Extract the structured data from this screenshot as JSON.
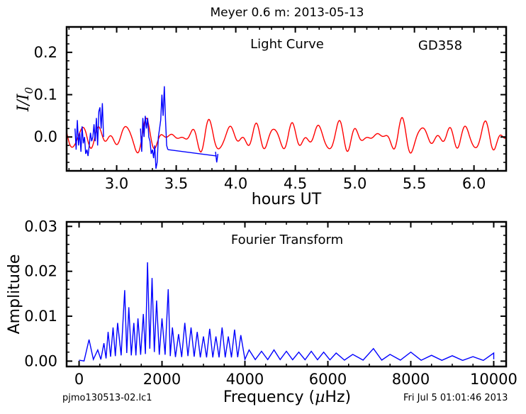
{
  "figure_title": "Meyer 0.6 m:  2013-05-13",
  "footer": {
    "left": "pjmo130513-02.lc1",
    "right": "Fri Jul  5 01:01:46 2013"
  },
  "colors": {
    "data": "#0000ff",
    "model": "#ff0000",
    "ft": "#0000ff",
    "axes": "#000000"
  },
  "chart_data": [
    {
      "type": "line",
      "name": "light-curve",
      "annotations": [
        "Light Curve",
        "GD358"
      ],
      "xlabel": "hours UT",
      "ylabel": "I/I0",
      "xlim": [
        2.58,
        6.27
      ],
      "ylim": [
        -0.08,
        0.26
      ],
      "xticks": [
        "3.0",
        "3.5",
        "4.0",
        "4.5",
        "5.0",
        "5.5",
        "6.0"
      ],
      "yticks": [
        "0.0",
        "0.1",
        "0.2"
      ],
      "series": [
        {
          "role": "observed data",
          "color": "#0000ff",
          "segments": [
            {
              "x": [
                2.65,
                2.66,
                2.67,
                2.68,
                2.69,
                2.7,
                2.71,
                2.72,
                2.73,
                2.74,
                2.75,
                2.76,
                2.77,
                2.78,
                2.79,
                2.8,
                2.81,
                2.82,
                2.83,
                2.84,
                2.85,
                2.86,
                2.87,
                2.88,
                2.89
              ],
              "y": [
                0.02,
                -0.03,
                0.04,
                -0.02,
                0.01,
                -0.035,
                0.025,
                -0.015,
                0.0,
                -0.04,
                -0.03,
                -0.045,
                -0.02,
                0.01,
                -0.01,
                0.0,
                0.03,
                -0.01,
                0.045,
                -0.02,
                0.06,
                0.07,
                0.02,
                0.08,
                0.0
              ]
            },
            {
              "x": [
                3.2,
                3.21,
                3.22,
                3.23,
                3.24,
                3.25,
                3.26,
                3.27,
                3.28,
                3.29,
                3.3,
                3.31,
                3.32,
                3.33,
                3.34,
                3.35,
                3.36,
                3.37,
                3.38,
                3.39,
                3.4,
                3.41,
                3.42,
                3.43
              ],
              "y": [
                0.02,
                -0.035,
                0.045,
                0.0,
                0.05,
                0.02,
                0.045,
                0.0,
                -0.01,
                -0.04,
                -0.03,
                -0.05,
                -0.02,
                -0.075,
                -0.06,
                0.0,
                0.02,
                0.04,
                0.1,
                0.05,
                0.12,
                0.04,
                -0.02,
                -0.03
              ]
            },
            {
              "x": [
                3.43,
                3.84
              ],
              "y": [
                -0.03,
                -0.045
              ]
            },
            {
              "x": [
                3.83,
                3.84,
                3.85
              ],
              "y": [
                -0.035,
                -0.06,
                -0.04
              ]
            }
          ]
        },
        {
          "role": "model",
          "color": "#ff0000",
          "components": [
            {
              "freq_per_hour": 5.6,
              "amp": 0.018,
              "phase": 0.3
            },
            {
              "freq_per_hour": 7.4,
              "amp": 0.015,
              "phase": 1.7
            },
            {
              "freq_per_hour": 9.8,
              "amp": 0.008,
              "phase": 2.4
            },
            {
              "freq_per_hour": 4.3,
              "amp": 0.007,
              "phase": 0.9
            }
          ]
        }
      ]
    },
    {
      "type": "line",
      "name": "fourier-transform",
      "annotations": [
        "Fourier Transform"
      ],
      "xlabel": "Frequency (µHz)",
      "xlabel_parts": [
        "Frequency (",
        "µ",
        "Hz)"
      ],
      "ylabel": "Amplitude",
      "xlim": [
        -300,
        10300
      ],
      "ylim": [
        -0.0012,
        0.031
      ],
      "xticks": [
        "0",
        "2000",
        "4000",
        "6000",
        "8000",
        "10000"
      ],
      "yticks": [
        "0.00",
        "0.01",
        "0.02",
        "0.03"
      ],
      "series": [
        {
          "color": "#0000ff",
          "peaks": [
            {
              "x": 240,
              "y": 0.0048
            },
            {
              "x": 450,
              "y": 0.0025
            },
            {
              "x": 600,
              "y": 0.004
            },
            {
              "x": 700,
              "y": 0.0065
            },
            {
              "x": 820,
              "y": 0.0075
            },
            {
              "x": 930,
              "y": 0.0085
            },
            {
              "x": 1100,
              "y": 0.0158
            },
            {
              "x": 1200,
              "y": 0.012
            },
            {
              "x": 1320,
              "y": 0.0085
            },
            {
              "x": 1420,
              "y": 0.0095
            },
            {
              "x": 1550,
              "y": 0.0105
            },
            {
              "x": 1650,
              "y": 0.022
            },
            {
              "x": 1760,
              "y": 0.0185
            },
            {
              "x": 1870,
              "y": 0.0135
            },
            {
              "x": 2000,
              "y": 0.0095
            },
            {
              "x": 2150,
              "y": 0.016
            },
            {
              "x": 2250,
              "y": 0.0075
            },
            {
              "x": 2400,
              "y": 0.006
            },
            {
              "x": 2550,
              "y": 0.0085
            },
            {
              "x": 2700,
              "y": 0.0075
            },
            {
              "x": 2850,
              "y": 0.0065
            },
            {
              "x": 3000,
              "y": 0.0055
            },
            {
              "x": 3150,
              "y": 0.0072
            },
            {
              "x": 3300,
              "y": 0.0055
            },
            {
              "x": 3450,
              "y": 0.0075
            },
            {
              "x": 3600,
              "y": 0.0055
            },
            {
              "x": 3750,
              "y": 0.007
            },
            {
              "x": 3900,
              "y": 0.0058
            },
            {
              "x": 4100,
              "y": 0.0025
            },
            {
              "x": 4400,
              "y": 0.0022
            },
            {
              "x": 4700,
              "y": 0.0025
            },
            {
              "x": 5000,
              "y": 0.0022
            },
            {
              "x": 5300,
              "y": 0.002
            },
            {
              "x": 5600,
              "y": 0.0022
            },
            {
              "x": 5900,
              "y": 0.002
            },
            {
              "x": 6200,
              "y": 0.0018
            },
            {
              "x": 6600,
              "y": 0.0015
            },
            {
              "x": 7100,
              "y": 0.0028
            },
            {
              "x": 7500,
              "y": 0.0015
            },
            {
              "x": 8000,
              "y": 0.002
            },
            {
              "x": 8500,
              "y": 0.0013
            },
            {
              "x": 9000,
              "y": 0.0012
            },
            {
              "x": 9500,
              "y": 0.001
            },
            {
              "x": 10000,
              "y": 0.0018
            }
          ]
        }
      ]
    }
  ]
}
